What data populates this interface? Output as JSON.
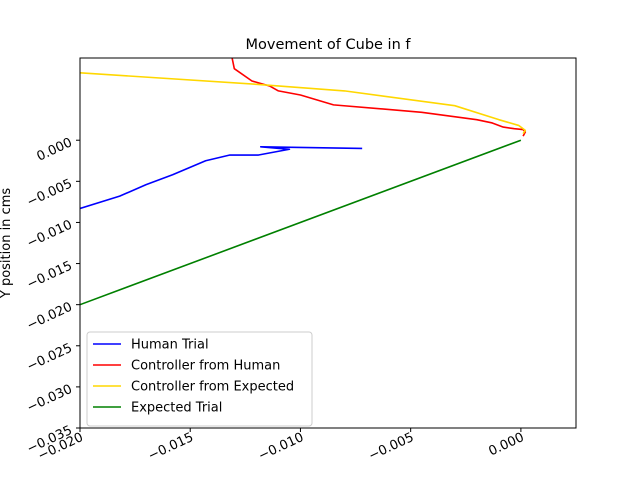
{
  "chart_data": {
    "type": "line",
    "title": "Movement of Cube in f",
    "xlabel": "",
    "ylabel": "Y position in cms",
    "xlim": [
      -0.02,
      0.0025
    ],
    "ylim": [
      -0.035,
      0.01
    ],
    "xticks": [
      -0.02,
      -0.015,
      -0.01,
      -0.005,
      0.0
    ],
    "xtick_labels": [
      "−0.020",
      "−0.015",
      "−0.010",
      "−0.005",
      "0.000"
    ],
    "yticks": [
      -0.035,
      -0.03,
      -0.025,
      -0.02,
      -0.015,
      -0.01,
      -0.005,
      0.0
    ],
    "ytick_labels": [
      "−0.035",
      "−0.030",
      "−0.025",
      "−0.020",
      "−0.015",
      "−0.010",
      "−0.005",
      "0.000"
    ],
    "grid": false,
    "legend_position": "lower-left",
    "series": [
      {
        "name": "Human Trial",
        "color": "#0000ff",
        "x": [
          -0.02,
          -0.0182,
          -0.017,
          -0.0158,
          -0.0143,
          -0.0132,
          -0.0119,
          -0.0105,
          -0.0118,
          -0.0072
        ],
        "y": [
          -0.0083,
          -0.0068,
          -0.0054,
          -0.0042,
          -0.0025,
          -0.0018,
          -0.0018,
          -0.0011,
          -0.0008,
          -0.001
        ]
      },
      {
        "name": "Controller from Human",
        "color": "#ff0000",
        "x": [
          -0.0131,
          -0.013,
          -0.0122,
          -0.0114,
          -0.011,
          -0.01,
          -0.0085,
          -0.0045,
          -0.002,
          -0.0013,
          -0.0008,
          -0.0003,
          0.0001,
          0.0002,
          0.0001
        ],
        "y": [
          0.01,
          0.0087,
          0.0072,
          0.0066,
          0.006,
          0.0055,
          0.0043,
          0.0034,
          0.0025,
          0.0021,
          0.0016,
          0.0014,
          0.0013,
          0.001,
          0.0005
        ]
      },
      {
        "name": "Controller from Expected",
        "color": "#ffd700",
        "x": [
          -0.02,
          -0.012,
          -0.008,
          -0.003,
          -0.001,
          -0.0001,
          0.0002,
          0.0001
        ],
        "y": [
          0.0082,
          0.0068,
          0.006,
          0.0042,
          0.0025,
          0.0018,
          0.0012,
          0.0008
        ]
      },
      {
        "name": "Expected Trial",
        "color": "#008000",
        "x": [
          -0.02,
          0.0
        ],
        "y": [
          -0.02,
          0.0
        ]
      }
    ]
  }
}
